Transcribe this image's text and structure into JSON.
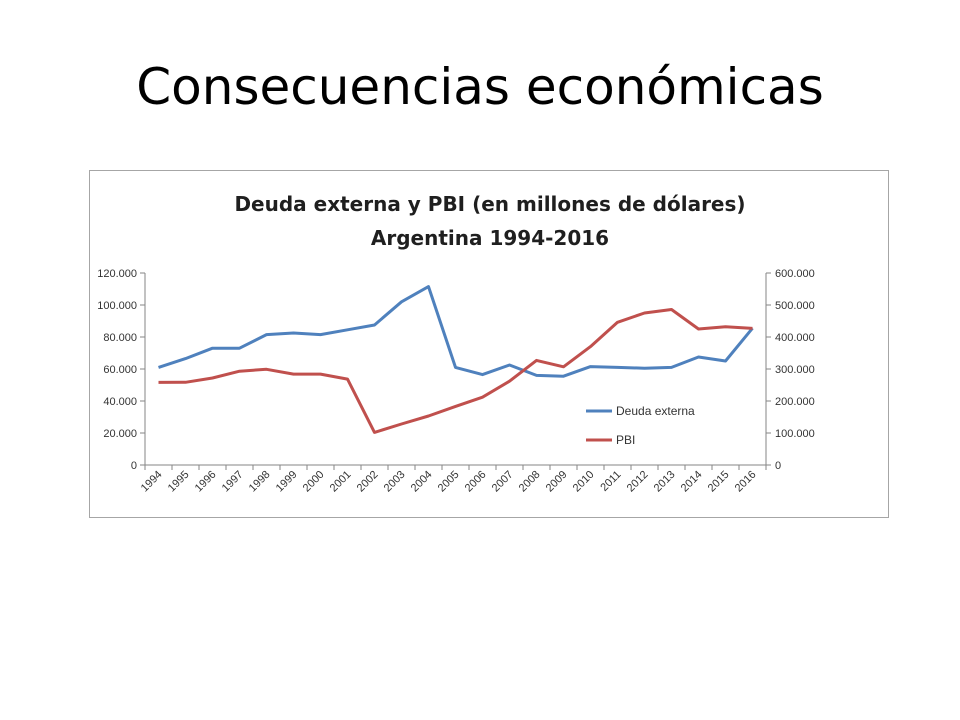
{
  "slide": {
    "title": "Consecuencias económicas"
  },
  "chart_data": {
    "type": "line",
    "title": "Deuda externa y PBI (en millones de dólares)",
    "subtitle": "Argentina 1994-2016",
    "categories": [
      "1994",
      "1995",
      "1996",
      "1997",
      "1998",
      "1999",
      "2000",
      "2001",
      "2002",
      "2003",
      "2004",
      "2005",
      "2006",
      "2007",
      "2008",
      "2009",
      "2010",
      "2011",
      "2012",
      "2013",
      "2014",
      "2015",
      "2016"
    ],
    "y_left": {
      "min": 0,
      "max": 120000,
      "step": 20000,
      "tick_labels": [
        "0",
        "20.000",
        "40.000",
        "60.000",
        "80.000",
        "100.000",
        "120.000"
      ]
    },
    "y_right": {
      "min": 0,
      "max": 600000,
      "step": 100000,
      "tick_labels": [
        "0",
        "100.000",
        "200.000",
        "300.000",
        "400.000",
        "500.000",
        "600.000"
      ]
    },
    "grid": false,
    "legend_position": "right",
    "series": [
      {
        "name": "Deuda externa",
        "axis": "left",
        "color": "#4f81bd",
        "values": [
          61000,
          66500,
          73000,
          73000,
          81500,
          82500,
          81500,
          84500,
          87500,
          102000,
          111500,
          61000,
          56500,
          62500,
          56000,
          55500,
          61500,
          61000,
          60500,
          61000,
          67500,
          65000,
          85500
        ]
      },
      {
        "name": "PBI",
        "axis": "right",
        "color": "#c0504d",
        "values": [
          258000,
          258500,
          272000,
          293000,
          299000,
          284000,
          284000,
          268500,
          102000,
          128000,
          153000,
          183000,
          212000,
          262000,
          327000,
          307000,
          370000,
          446000,
          475000,
          486000,
          425000,
          432000,
          427000
        ]
      }
    ]
  }
}
